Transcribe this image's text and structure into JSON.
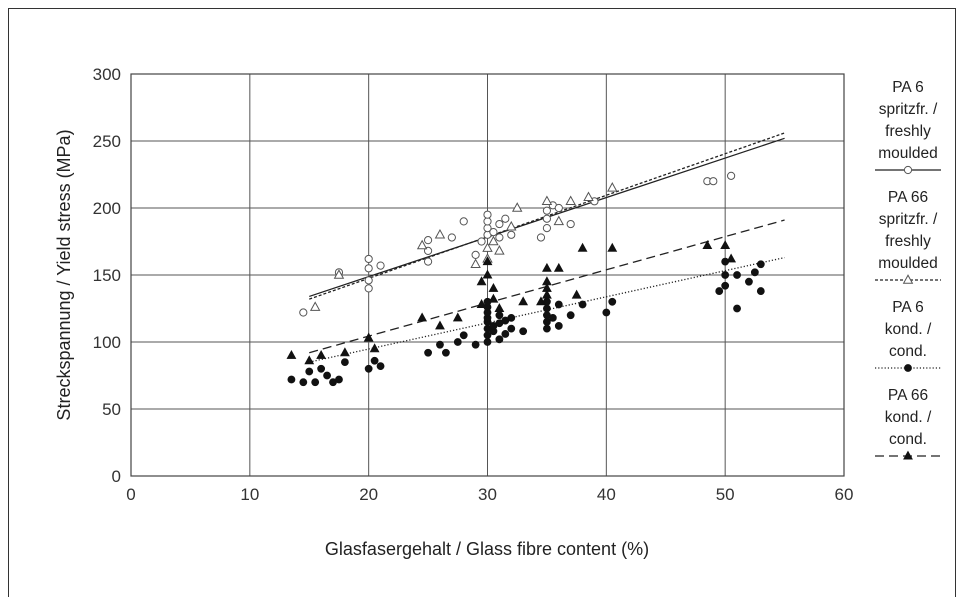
{
  "chart_data": {
    "type": "scatter",
    "xlabel": "Glasfasergehalt / Glass fibre content (%)",
    "ylabel": "Streckspannung / Yield stress (MPa)",
    "xlim": [
      0,
      60
    ],
    "ylim": [
      0,
      300
    ],
    "xticks": [
      0,
      10,
      20,
      30,
      40,
      50,
      60
    ],
    "yticks": [
      0,
      50,
      100,
      150,
      200,
      250,
      300
    ],
    "grid": true,
    "legend_position": "right",
    "series": [
      {
        "name": [
          "PA 6",
          "spritzfr. /",
          "freshly",
          "moulded"
        ],
        "marker": "open-circle",
        "line_style": "solid",
        "trend": [
          [
            15,
            134
          ],
          [
            55,
            252
          ]
        ],
        "points": [
          [
            14.5,
            122
          ],
          [
            17.5,
            152
          ],
          [
            20,
            155
          ],
          [
            20,
            162
          ],
          [
            20,
            146
          ],
          [
            20,
            140
          ],
          [
            21,
            157
          ],
          [
            25,
            160
          ],
          [
            25,
            168
          ],
          [
            25,
            176
          ],
          [
            27,
            178
          ],
          [
            28,
            190
          ],
          [
            29,
            165
          ],
          [
            29.5,
            175
          ],
          [
            30,
            180
          ],
          [
            30,
            185
          ],
          [
            30,
            190
          ],
          [
            30,
            195
          ],
          [
            30.5,
            182
          ],
          [
            31,
            178
          ],
          [
            31,
            188
          ],
          [
            31.5,
            192
          ],
          [
            32,
            180
          ],
          [
            34.5,
            178
          ],
          [
            35,
            185
          ],
          [
            35,
            192
          ],
          [
            35,
            198
          ],
          [
            35.5,
            202
          ],
          [
            36,
            200
          ],
          [
            37,
            188
          ],
          [
            39,
            205
          ],
          [
            48.5,
            220
          ],
          [
            49,
            220
          ],
          [
            50.5,
            224
          ]
        ]
      },
      {
        "name": [
          "PA 66",
          "spritzfr. /",
          "freshly",
          "moulded"
        ],
        "marker": "open-triangle",
        "line_style": "short-dash",
        "trend": [
          [
            15,
            132
          ],
          [
            55,
            256
          ]
        ],
        "points": [
          [
            15.5,
            126
          ],
          [
            17.5,
            150
          ],
          [
            24.5,
            172
          ],
          [
            26,
            180
          ],
          [
            29,
            158
          ],
          [
            30,
            162
          ],
          [
            30,
            170
          ],
          [
            30.5,
            175
          ],
          [
            31,
            168
          ],
          [
            32,
            186
          ],
          [
            32.5,
            200
          ],
          [
            35,
            205
          ],
          [
            36,
            190
          ],
          [
            37,
            205
          ],
          [
            38.5,
            208
          ],
          [
            40.5,
            215
          ]
        ]
      },
      {
        "name": [
          "PA 6",
          "kond. /",
          "cond."
        ],
        "marker": "filled-circle",
        "line_style": "dotted",
        "trend": [
          [
            15,
            85
          ],
          [
            55,
            163
          ]
        ],
        "points": [
          [
            13.5,
            72
          ],
          [
            14.5,
            70
          ],
          [
            15,
            78
          ],
          [
            15.5,
            70
          ],
          [
            16,
            80
          ],
          [
            16.5,
            75
          ],
          [
            17,
            70
          ],
          [
            17.5,
            72
          ],
          [
            18,
            85
          ],
          [
            20,
            80
          ],
          [
            20.5,
            86
          ],
          [
            21,
            82
          ],
          [
            25,
            92
          ],
          [
            26,
            98
          ],
          [
            26.5,
            92
          ],
          [
            27.5,
            100
          ],
          [
            28,
            105
          ],
          [
            29,
            98
          ],
          [
            30,
            100
          ],
          [
            30,
            105
          ],
          [
            30,
            110
          ],
          [
            30,
            115
          ],
          [
            30,
            118
          ],
          [
            30,
            122
          ],
          [
            30,
            126
          ],
          [
            30,
            130
          ],
          [
            30.5,
            108
          ],
          [
            30.5,
            112
          ],
          [
            31,
            102
          ],
          [
            31,
            114
          ],
          [
            31,
            120
          ],
          [
            31.5,
            106
          ],
          [
            31.5,
            116
          ],
          [
            32,
            110
          ],
          [
            32,
            118
          ],
          [
            33,
            108
          ],
          [
            35,
            110
          ],
          [
            35,
            115
          ],
          [
            35,
            120
          ],
          [
            35,
            125
          ],
          [
            35,
            130
          ],
          [
            35.5,
            118
          ],
          [
            36,
            112
          ],
          [
            36,
            128
          ],
          [
            37,
            120
          ],
          [
            38,
            128
          ],
          [
            40,
            122
          ],
          [
            40.5,
            130
          ],
          [
            49.5,
            138
          ],
          [
            50,
            142
          ],
          [
            50,
            150
          ],
          [
            50,
            160
          ],
          [
            51,
            150
          ],
          [
            51,
            125
          ],
          [
            52,
            145
          ],
          [
            52.5,
            152
          ],
          [
            53,
            138
          ],
          [
            53,
            158
          ]
        ]
      },
      {
        "name": [
          "PA 66",
          "kond. /",
          "cond."
        ],
        "marker": "filled-triangle",
        "line_style": "long-dash",
        "trend": [
          [
            15,
            92
          ],
          [
            55,
            191
          ]
        ],
        "points": [
          [
            13.5,
            90
          ],
          [
            15,
            86
          ],
          [
            16,
            90
          ],
          [
            18,
            92
          ],
          [
            20,
            103
          ],
          [
            20.5,
            95
          ],
          [
            24.5,
            118
          ],
          [
            26,
            112
          ],
          [
            27.5,
            118
          ],
          [
            29.5,
            128
          ],
          [
            29.5,
            145
          ],
          [
            30,
            150
          ],
          [
            30,
            160
          ],
          [
            30.5,
            140
          ],
          [
            30.5,
            132
          ],
          [
            31,
            125
          ],
          [
            33,
            130
          ],
          [
            34.5,
            130
          ],
          [
            35,
            155
          ],
          [
            35,
            145
          ],
          [
            35,
            140
          ],
          [
            35,
            135
          ],
          [
            36,
            155
          ],
          [
            37.5,
            135
          ],
          [
            38,
            170
          ],
          [
            40.5,
            170
          ],
          [
            48.5,
            172
          ],
          [
            50,
            172
          ],
          [
            50.5,
            162
          ]
        ]
      }
    ]
  }
}
